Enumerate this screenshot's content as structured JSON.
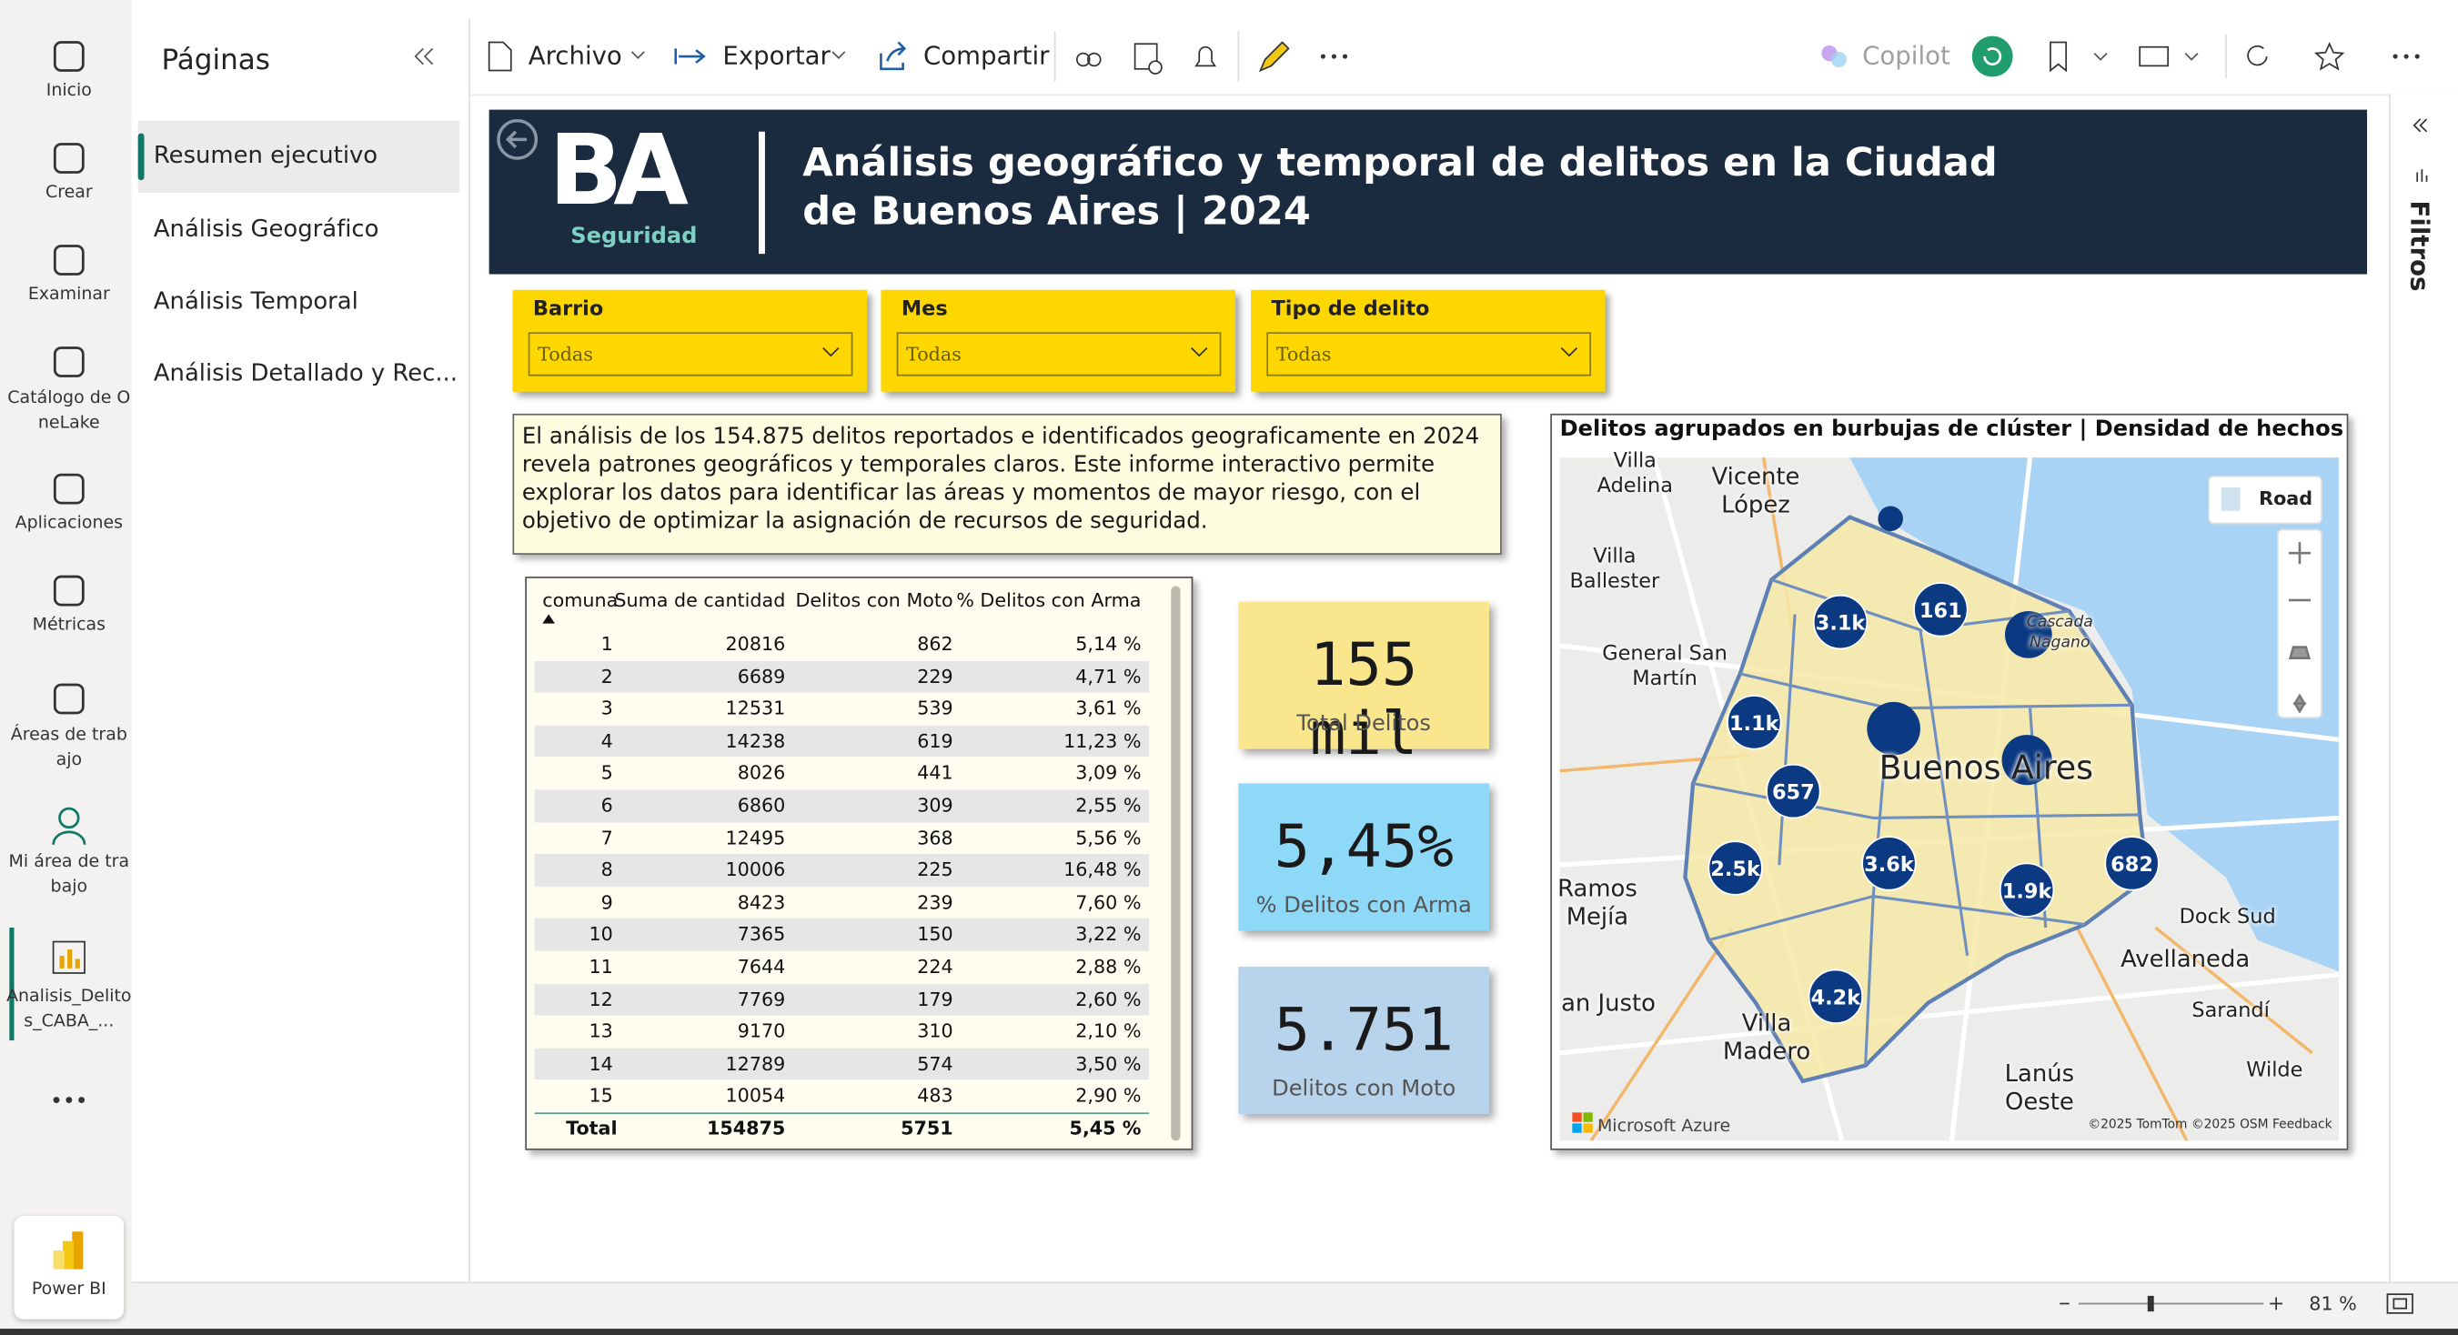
{
  "nav": {
    "items": [
      "Inicio",
      "Crear",
      "Examinar",
      "Catálogo de OneLake",
      "Aplicaciones",
      "Métricas",
      "Áreas de trabajo",
      "Mi área de trabajo",
      "Analisis_Delitos_CABA_...",
      "Power BI"
    ]
  },
  "pages": {
    "title": "Páginas",
    "items": [
      "Resumen ejecutivo",
      "Análisis Geográfico",
      "Análisis Temporal",
      "Análisis Detallado y Rec..."
    ]
  },
  "toolbar": {
    "items": [
      "Archivo",
      "Exportar",
      "Compartir"
    ],
    "copilot": "Copilot"
  },
  "filters_pane": "Filtros",
  "header": {
    "logo_text": "BA",
    "logo_subtitle": "Seguridad",
    "title": "Análisis geográfico y temporal de delitos en la Ciudad de Buenos Aires | 2024"
  },
  "slicers": [
    {
      "label": "Barrio",
      "value": "Todas"
    },
    {
      "label": "Mes",
      "value": "Todas"
    },
    {
      "label": "Tipo de delito",
      "value": "Todas"
    }
  ],
  "summary": "El análisis de los 154.875 delitos reportados e identificados geograficamente en 2024 revela patrones geográficos y temporales claros. Este informe interactivo permite explorar los datos para identificar las áreas y momentos de mayor riesgo, con el objetivo de optimizar la asignación de recursos de seguridad.",
  "table": {
    "columns": [
      "comuna",
      "Suma de cantidad",
      "Delitos con Moto",
      "% Delitos con Arma"
    ],
    "rows": [
      [
        1,
        20816,
        862,
        "5,14 %"
      ],
      [
        2,
        6689,
        229,
        "4,71 %"
      ],
      [
        3,
        12531,
        539,
        "3,61 %"
      ],
      [
        4,
        14238,
        619,
        "11,23 %"
      ],
      [
        5,
        8026,
        441,
        "3,09 %"
      ],
      [
        6,
        6860,
        309,
        "2,55 %"
      ],
      [
        7,
        12495,
        368,
        "5,56 %"
      ],
      [
        8,
        10006,
        225,
        "16,48 %"
      ],
      [
        9,
        8423,
        239,
        "7,60 %"
      ],
      [
        10,
        7365,
        150,
        "3,22 %"
      ],
      [
        11,
        7644,
        224,
        "2,88 %"
      ],
      [
        12,
        7769,
        179,
        "2,60 %"
      ],
      [
        13,
        9170,
        310,
        "2,10 %"
      ],
      [
        14,
        12789,
        574,
        "3,50 %"
      ],
      [
        15,
        10054,
        483,
        "2,90 %"
      ]
    ],
    "total": [
      "Total",
      154875,
      5751,
      "5,45 %"
    ]
  },
  "cards": [
    {
      "value": "155 mil",
      "label": "Total Delitos"
    },
    {
      "value": "5,45%",
      "label": "% Delitos con Arma"
    },
    {
      "value": "5.751",
      "label": "Delitos con Moto"
    }
  ],
  "map": {
    "title": "Delitos agrupados en burbujas de clúster | Densidad de hechos",
    "style_button": "Road",
    "bubbles": [
      "3.1k",
      "161",
      "1.1k",
      "657",
      "2.5k",
      "3.6k",
      "1.9k",
      "682",
      "4.2k"
    ],
    "places": [
      "Villa Adelina",
      "Vicente López",
      "Villa Ballester",
      "General San Martín",
      "Cascada Nagano",
      "Buenos Aires",
      "Ramos Mejía",
      "Dock Sud",
      "Avellaneda",
      "Sarandí",
      "an Justo",
      "Villa Madero",
      "Lanús Oeste",
      "Wilde"
    ],
    "provider": "Microsoft Azure",
    "attribution": "©2025 TomTom ©2025 OSM Feedback"
  },
  "status": {
    "zoom": "81 %"
  }
}
